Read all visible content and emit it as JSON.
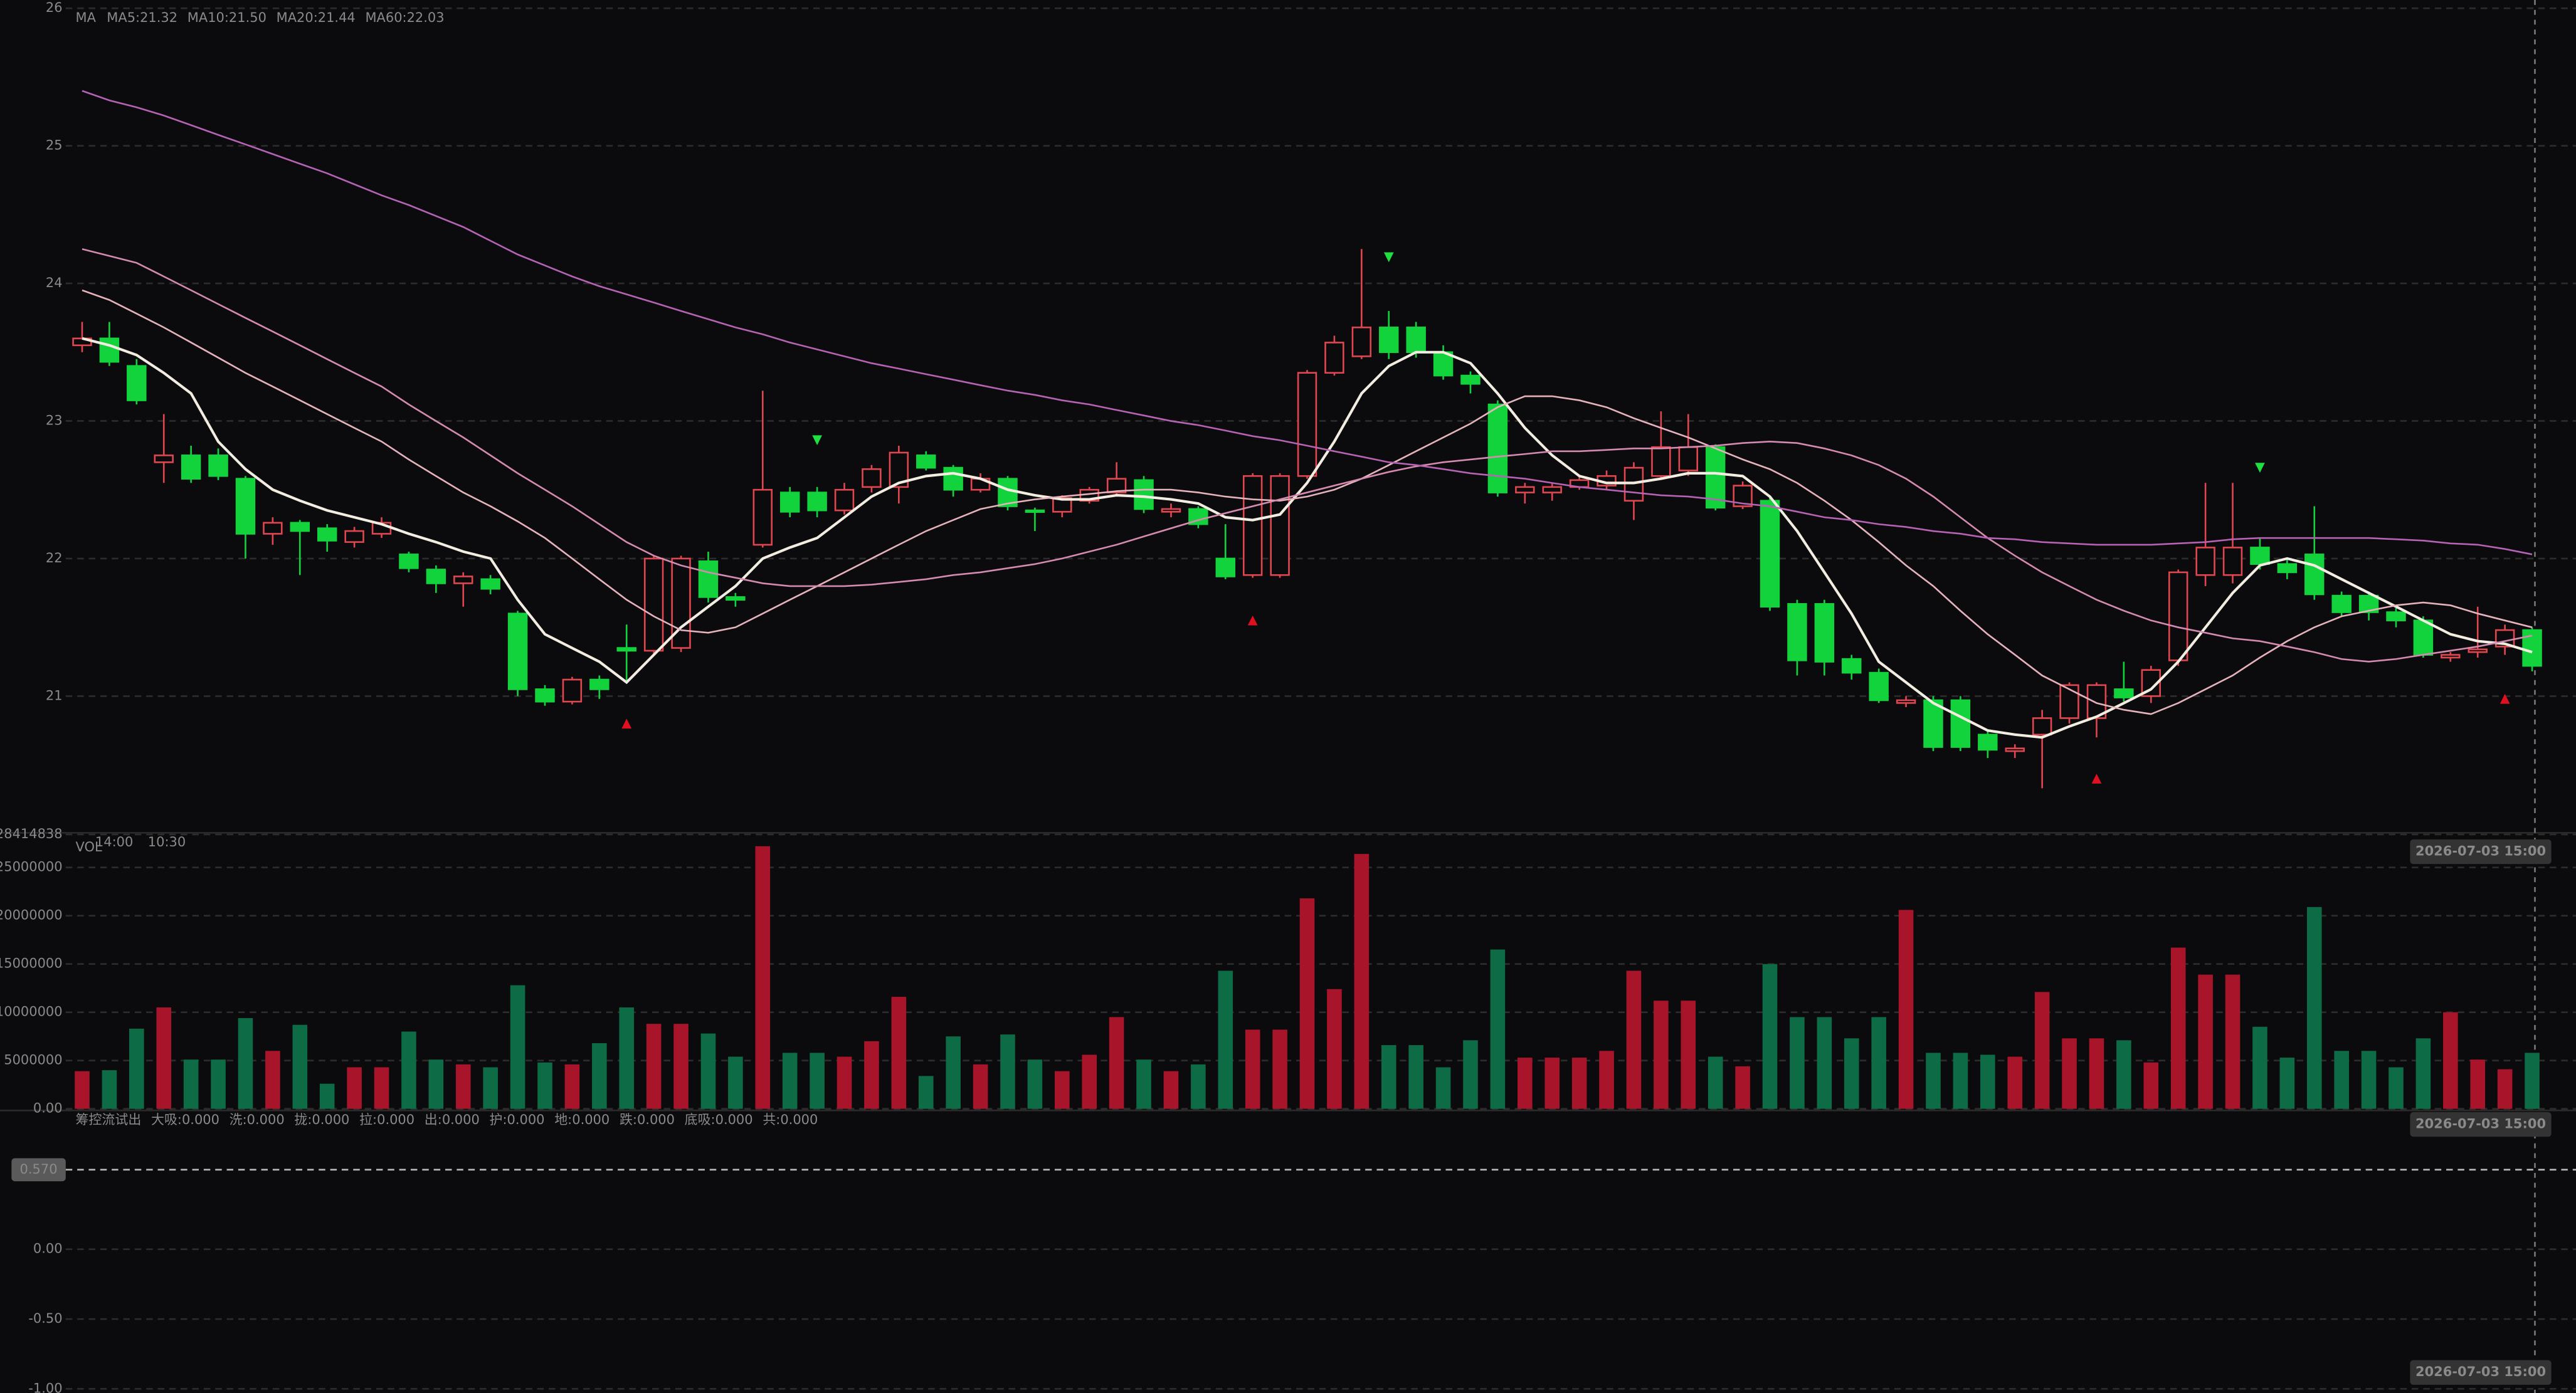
{
  "chart_data": [
    {
      "type": "candlestick",
      "legend_title": "MA",
      "up_color": "#e0464f",
      "down_color": "#12d33c",
      "marker_up_color": "#e01020",
      "marker_down_color": "#20e040",
      "ylim": [
        20.03,
        26.06
      ],
      "yticks": [
        21,
        22,
        23,
        24,
        25,
        26
      ],
      "grid": true,
      "open": [
        23.55,
        23.6,
        23.4,
        22.7,
        22.75,
        22.75,
        22.58,
        22.18,
        22.26,
        22.22,
        22.12,
        22.18,
        22.03,
        21.92,
        21.82,
        21.85,
        21.6,
        21.05,
        20.96,
        21.12,
        21.35,
        21.33,
        21.35,
        21.98,
        21.72,
        22.1,
        22.48,
        22.48,
        22.35,
        22.52,
        22.52,
        22.75,
        22.66,
        22.5,
        22.58,
        22.35,
        22.34,
        22.42,
        22.48,
        22.57,
        22.34,
        22.36,
        22.0,
        21.88,
        21.88,
        22.6,
        23.35,
        23.47,
        23.68,
        23.68,
        23.5,
        23.33,
        23.12,
        22.48,
        22.48,
        22.52,
        22.53,
        22.42,
        22.6,
        22.64,
        22.81,
        22.38,
        22.42,
        21.67,
        21.67,
        21.27,
        21.17,
        20.95,
        20.97,
        20.97,
        20.72,
        20.6,
        20.72,
        20.84,
        20.84,
        21.05,
        21.0,
        21.26,
        21.88,
        21.88,
        22.08,
        21.96,
        22.03,
        21.73,
        21.73,
        21.61,
        21.55,
        21.28,
        21.32,
        21.36,
        21.48
      ],
      "high": [
        23.72,
        23.72,
        23.45,
        23.05,
        22.82,
        22.8,
        22.6,
        22.3,
        22.28,
        22.25,
        22.23,
        22.3,
        22.05,
        21.95,
        21.9,
        21.88,
        21.62,
        21.08,
        21.14,
        21.15,
        21.52,
        22.02,
        22.02,
        22.05,
        21.75,
        23.22,
        22.52,
        22.52,
        22.55,
        22.68,
        22.82,
        22.78,
        22.68,
        22.62,
        22.6,
        22.37,
        22.46,
        22.52,
        22.7,
        22.6,
        22.4,
        22.38,
        22.25,
        22.62,
        22.62,
        23.37,
        23.62,
        24.25,
        23.8,
        23.72,
        23.55,
        23.36,
        23.15,
        22.55,
        22.55,
        22.6,
        22.64,
        22.7,
        23.07,
        23.05,
        22.83,
        22.56,
        22.45,
        21.7,
        21.7,
        21.3,
        21.2,
        21.0,
        21.0,
        21.0,
        20.75,
        20.65,
        20.9,
        21.1,
        21.1,
        21.25,
        21.22,
        21.92,
        22.55,
        22.55,
        22.15,
        22.0,
        22.38,
        21.76,
        21.76,
        21.64,
        21.58,
        21.32,
        21.65,
        21.52,
        21.5
      ],
      "low": [
        23.5,
        23.4,
        23.12,
        22.55,
        22.55,
        22.57,
        22.0,
        22.1,
        21.88,
        22.05,
        22.08,
        22.15,
        21.9,
        21.75,
        21.65,
        21.74,
        21.0,
        20.93,
        20.94,
        20.98,
        21.1,
        21.3,
        21.32,
        21.68,
        21.65,
        22.08,
        22.3,
        22.3,
        22.32,
        22.48,
        22.4,
        22.64,
        22.45,
        22.48,
        22.35,
        22.2,
        22.3,
        22.4,
        22.45,
        22.33,
        22.3,
        22.22,
        21.85,
        21.86,
        21.86,
        22.58,
        23.33,
        23.45,
        23.45,
        23.46,
        23.3,
        23.2,
        22.45,
        22.4,
        22.42,
        22.5,
        22.5,
        22.28,
        22.58,
        22.6,
        22.35,
        22.36,
        21.62,
        21.15,
        21.15,
        21.12,
        20.95,
        20.92,
        20.6,
        20.6,
        20.55,
        20.55,
        20.33,
        20.8,
        20.7,
        20.96,
        20.95,
        21.22,
        21.8,
        21.82,
        21.92,
        21.85,
        21.7,
        21.58,
        21.55,
        21.5,
        21.28,
        21.25,
        21.28,
        21.3,
        21.18
      ],
      "close": [
        23.6,
        23.43,
        23.15,
        22.75,
        22.58,
        22.6,
        22.18,
        22.26,
        22.2,
        22.13,
        22.2,
        22.26,
        21.93,
        21.82,
        21.87,
        21.78,
        21.05,
        20.96,
        21.12,
        21.05,
        21.33,
        22.0,
        22.0,
        21.72,
        21.7,
        22.5,
        22.34,
        22.35,
        22.5,
        22.65,
        22.77,
        22.66,
        22.5,
        22.58,
        22.38,
        22.34,
        22.44,
        22.5,
        22.58,
        22.36,
        22.36,
        22.25,
        21.87,
        22.6,
        22.6,
        23.35,
        23.57,
        23.68,
        23.5,
        23.5,
        23.33,
        23.27,
        22.48,
        22.52,
        22.52,
        22.57,
        22.6,
        22.66,
        22.81,
        22.81,
        22.37,
        22.53,
        21.65,
        21.26,
        21.25,
        21.17,
        20.97,
        20.97,
        20.63,
        20.63,
        20.61,
        20.62,
        20.84,
        21.08,
        21.08,
        20.99,
        21.19,
        21.9,
        22.08,
        22.08,
        21.96,
        21.9,
        21.74,
        21.61,
        21.61,
        21.55,
        21.3,
        21.3,
        21.34,
        21.48,
        21.22
      ],
      "series": [
        {
          "label": "MA5:21.32",
          "color": "#f3ece0",
          "values": [
            23.6,
            23.55,
            23.48,
            23.35,
            23.2,
            22.85,
            22.65,
            22.5,
            22.42,
            22.35,
            22.3,
            22.25,
            22.18,
            22.12,
            22.05,
            22.0,
            21.7,
            21.45,
            21.35,
            21.25,
            21.1,
            21.3,
            21.5,
            21.65,
            21.8,
            22.0,
            22.08,
            22.15,
            22.3,
            22.45,
            22.55,
            22.6,
            22.62,
            22.58,
            22.5,
            22.46,
            22.43,
            22.43,
            22.46,
            22.45,
            22.43,
            22.4,
            22.3,
            22.28,
            22.32,
            22.55,
            22.85,
            23.2,
            23.4,
            23.5,
            23.5,
            23.42,
            23.2,
            22.95,
            22.75,
            22.6,
            22.55,
            22.55,
            22.58,
            22.62,
            22.62,
            22.6,
            22.45,
            22.2,
            21.9,
            21.6,
            21.25,
            21.1,
            20.95,
            20.85,
            20.75,
            20.72,
            20.7,
            20.78,
            20.85,
            20.95,
            21.05,
            21.25,
            21.5,
            21.75,
            21.95,
            22.0,
            21.95,
            21.85,
            21.75,
            21.65,
            21.55,
            21.45,
            21.4,
            21.38,
            21.32
          ]
        },
        {
          "label": "MA10:21.50",
          "color": "#e6b3bd",
          "values": [
            23.95,
            23.88,
            23.78,
            23.68,
            23.57,
            23.46,
            23.35,
            23.25,
            23.15,
            23.05,
            22.95,
            22.85,
            22.72,
            22.6,
            22.48,
            22.38,
            22.27,
            22.15,
            22.0,
            21.85,
            21.7,
            21.58,
            21.48,
            21.46,
            21.5,
            21.6,
            21.7,
            21.8,
            21.9,
            22.0,
            22.1,
            22.2,
            22.28,
            22.36,
            22.4,
            22.43,
            22.45,
            22.47,
            22.49,
            22.5,
            22.5,
            22.48,
            22.45,
            22.43,
            22.42,
            22.45,
            22.5,
            22.58,
            22.68,
            22.78,
            22.88,
            22.98,
            23.1,
            23.18,
            23.18,
            23.15,
            23.1,
            23.02,
            22.95,
            22.88,
            22.8,
            22.72,
            22.65,
            22.55,
            22.42,
            22.28,
            22.12,
            21.95,
            21.8,
            21.62,
            21.45,
            21.3,
            21.15,
            21.05,
            20.95,
            20.9,
            20.87,
            20.95,
            21.05,
            21.15,
            21.28,
            21.4,
            21.5,
            21.58,
            21.62,
            21.66,
            21.68,
            21.66,
            21.6,
            21.55,
            21.5
          ]
        },
        {
          "label": "MA20:21.44",
          "color": "#d58bb0",
          "values": [
            24.25,
            24.2,
            24.15,
            24.05,
            23.95,
            23.85,
            23.75,
            23.65,
            23.55,
            23.45,
            23.35,
            23.25,
            23.12,
            23.0,
            22.88,
            22.75,
            22.62,
            22.5,
            22.38,
            22.25,
            22.12,
            22.02,
            21.95,
            21.9,
            21.86,
            21.82,
            21.8,
            21.8,
            21.8,
            21.81,
            21.83,
            21.85,
            21.88,
            21.9,
            21.93,
            21.96,
            22.0,
            22.05,
            22.1,
            22.16,
            22.22,
            22.28,
            22.33,
            22.38,
            22.43,
            22.48,
            22.53,
            22.58,
            22.63,
            22.67,
            22.7,
            22.72,
            22.74,
            22.76,
            22.78,
            22.78,
            22.79,
            22.8,
            22.8,
            22.81,
            22.82,
            22.84,
            22.85,
            22.84,
            22.8,
            22.75,
            22.68,
            22.58,
            22.45,
            22.3,
            22.15,
            22.02,
            21.9,
            21.8,
            21.7,
            21.62,
            21.55,
            21.5,
            21.46,
            21.42,
            21.4,
            21.36,
            21.32,
            21.27,
            21.25,
            21.27,
            21.3,
            21.33,
            21.36,
            21.4,
            21.44
          ]
        },
        {
          "label": "MA60:22.03",
          "color": "#b763b5",
          "values": [
            25.4,
            25.33,
            25.28,
            25.22,
            25.15,
            25.08,
            25.01,
            24.94,
            24.87,
            24.8,
            24.72,
            24.64,
            24.57,
            24.49,
            24.41,
            24.31,
            24.21,
            24.13,
            24.05,
            23.98,
            23.92,
            23.86,
            23.8,
            23.74,
            23.68,
            23.63,
            23.57,
            23.52,
            23.47,
            23.42,
            23.38,
            23.34,
            23.3,
            23.26,
            23.22,
            23.19,
            23.15,
            23.12,
            23.08,
            23.04,
            23.0,
            22.97,
            22.93,
            22.89,
            22.86,
            22.82,
            22.78,
            22.74,
            22.7,
            22.68,
            22.65,
            22.62,
            22.6,
            22.58,
            22.55,
            22.52,
            22.5,
            22.48,
            22.46,
            22.45,
            22.43,
            22.4,
            22.38,
            22.34,
            22.3,
            22.28,
            22.25,
            22.23,
            22.2,
            22.18,
            22.15,
            22.14,
            22.12,
            22.11,
            22.1,
            22.1,
            22.1,
            22.11,
            22.12,
            22.14,
            22.15,
            22.15,
            22.15,
            22.15,
            22.15,
            22.14,
            22.13,
            22.11,
            22.1,
            22.07,
            22.03
          ]
        }
      ],
      "up_markers": [
        {
          "index": 20,
          "value": 20.8
        },
        {
          "index": 43,
          "value": 21.55
        },
        {
          "index": 74,
          "value": 20.4
        },
        {
          "index": 89,
          "value": 20.98
        }
      ],
      "down_markers": [
        {
          "index": 27,
          "value": 22.86
        },
        {
          "index": 48,
          "value": 24.19
        },
        {
          "index": 80,
          "value": 22.66
        }
      ]
    },
    {
      "type": "bar",
      "title": "VOL",
      "time_labels": [
        "14:00",
        "10:30"
      ],
      "up_color": "#a8142a",
      "down_color": "#0d6b46",
      "ylim": [
        0,
        28414838
      ],
      "yticks": [
        {
          "value": 0,
          "label": "0.00"
        },
        5000000,
        10000000,
        15000000,
        20000000,
        25000000,
        28414838
      ],
      "grid": true,
      "values": [
        3900000,
        4000000,
        8300000,
        10500000,
        5100000,
        5100000,
        9400000,
        6000000,
        8700000,
        2600000,
        4300000,
        4300000,
        8000000,
        5100000,
        4600000,
        4300000,
        12800000,
        4800000,
        4600000,
        6800000,
        10500000,
        8800000,
        8800000,
        7800000,
        5400000,
        27200000,
        5800000,
        5800000,
        5400000,
        7000000,
        11600000,
        3400000,
        7500000,
        4600000,
        7700000,
        5100000,
        3900000,
        5600000,
        9500000,
        5100000,
        3900000,
        4600000,
        14300000,
        8200000,
        8200000,
        21800000,
        12400000,
        26400000,
        6600000,
        6600000,
        4300000,
        7100000,
        16500000,
        5300000,
        5300000,
        5300000,
        6000000,
        14300000,
        11200000,
        11200000,
        5400000,
        4400000,
        15000000,
        9500000,
        9500000,
        7300000,
        9500000,
        20600000,
        5800000,
        5800000,
        5600000,
        5400000,
        12100000,
        7300000,
        7300000,
        7100000,
        4800000,
        16700000,
        13900000,
        13900000,
        8500000,
        5300000,
        20900000,
        6000000,
        6000000,
        4300000,
        7300000,
        10000000,
        5100000,
        4100000,
        5800000
      ]
    },
    {
      "type": "indicator",
      "title": "筹控流试出",
      "ylim": [
        -1.03,
        0.83
      ],
      "yticks": [
        {
          "value": 0,
          "label": "0.00"
        },
        {
          "value": -0.5,
          "label": "-0.50"
        },
        {
          "value": -1,
          "label": "-1.00"
        }
      ],
      "grid": true,
      "current_value": {
        "value": 0.57,
        "label": "0.570"
      },
      "legend": [
        {
          "text": "大吸:0.000",
          "color": "#3a8ee6"
        },
        {
          "text": "洗:0.000",
          "color": "#22cc22"
        },
        {
          "text": "拢:0.000",
          "color": "#e6e600"
        },
        {
          "text": "拉:0.000",
          "color": "#e03030"
        },
        {
          "text": "出:0.000",
          "color": "#9a9a9a"
        },
        {
          "text": "护:0.000",
          "color": "#ffffff"
        },
        {
          "text": "地:0.000",
          "color": "#ffffff"
        },
        {
          "text": "跌:0.000",
          "color": "#c030d0"
        },
        {
          "text": "底吸:0.000",
          "color": "#20ccdd"
        },
        {
          "text": "共:0.000",
          "color": "#6f8cff"
        }
      ]
    }
  ],
  "crosshair_time": "2026-07-03 15:00"
}
